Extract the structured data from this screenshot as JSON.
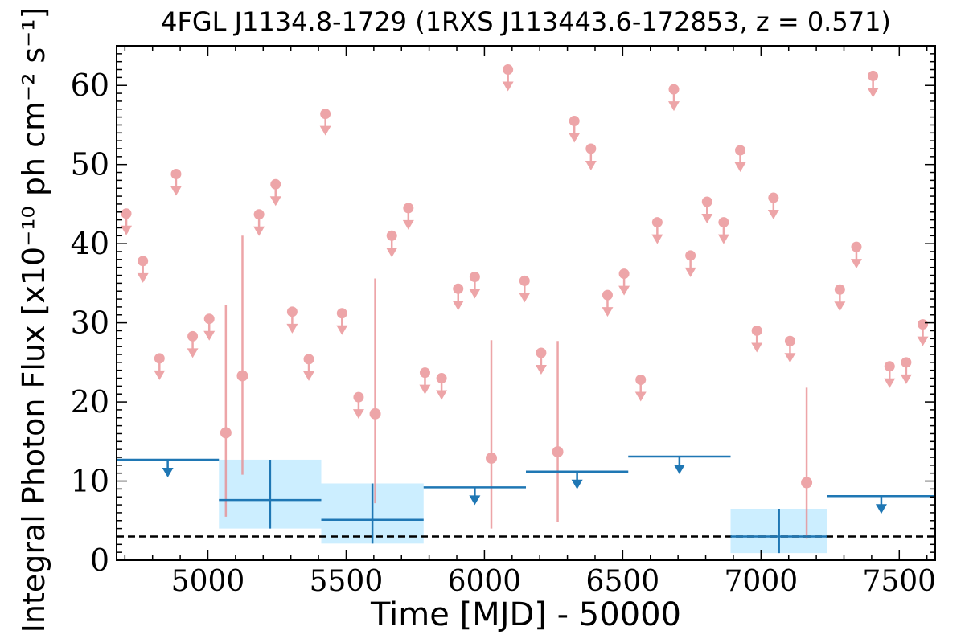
{
  "chart_data": {
    "type": "scatter",
    "title": "4FGL J1134.8-1729 (1RXS J113443.6-172853, z = 0.571)",
    "xlabel": "Time [MJD] - 50000",
    "ylabel": "Integral Photon Flux [x10⁻¹⁰ ph cm⁻² s⁻¹]",
    "xlim": [
      4670,
      7630
    ],
    "ylim": [
      0,
      65
    ],
    "xticks": [
      5000,
      5500,
      6000,
      6500,
      7000,
      7500
    ],
    "yticks": [
      0,
      10,
      20,
      30,
      40,
      50,
      60
    ],
    "grid": false,
    "reference_line": {
      "y": 3.0,
      "style": "dashed",
      "color": "#000000"
    },
    "colors": {
      "short_bins": "#e8888c",
      "long_bins": "#1f77b4",
      "long_bins_band": "#cceeff"
    },
    "short_bin_upper_limits": [
      {
        "x": 4705,
        "y": 43.8
      },
      {
        "x": 4765,
        "y": 37.8
      },
      {
        "x": 4825,
        "y": 25.5
      },
      {
        "x": 4885,
        "y": 48.8
      },
      {
        "x": 4945,
        "y": 28.3
      },
      {
        "x": 5005,
        "y": 30.5
      },
      {
        "x": 5185,
        "y": 43.7
      },
      {
        "x": 5245,
        "y": 47.5
      },
      {
        "x": 5305,
        "y": 31.4
      },
      {
        "x": 5365,
        "y": 25.4
      },
      {
        "x": 5425,
        "y": 56.4
      },
      {
        "x": 5485,
        "y": 31.2
      },
      {
        "x": 5545,
        "y": 20.6
      },
      {
        "x": 5665,
        "y": 41.0
      },
      {
        "x": 5725,
        "y": 44.5
      },
      {
        "x": 5785,
        "y": 23.7
      },
      {
        "x": 5845,
        "y": 23.0
      },
      {
        "x": 5905,
        "y": 34.3
      },
      {
        "x": 5965,
        "y": 35.8
      },
      {
        "x": 6085,
        "y": 62.0
      },
      {
        "x": 6145,
        "y": 35.3
      },
      {
        "x": 6205,
        "y": 26.2
      },
      {
        "x": 6325,
        "y": 55.5
      },
      {
        "x": 6385,
        "y": 52.0
      },
      {
        "x": 6445,
        "y": 33.5
      },
      {
        "x": 6505,
        "y": 36.2
      },
      {
        "x": 6565,
        "y": 22.8
      },
      {
        "x": 6625,
        "y": 42.7
      },
      {
        "x": 6685,
        "y": 59.5
      },
      {
        "x": 6745,
        "y": 38.5
      },
      {
        "x": 6805,
        "y": 45.3
      },
      {
        "x": 6865,
        "y": 42.7
      },
      {
        "x": 6925,
        "y": 51.8
      },
      {
        "x": 6985,
        "y": 29.0
      },
      {
        "x": 7045,
        "y": 45.8
      },
      {
        "x": 7105,
        "y": 27.7
      },
      {
        "x": 7285,
        "y": 34.2
      },
      {
        "x": 7345,
        "y": 39.6
      },
      {
        "x": 7405,
        "y": 61.2
      },
      {
        "x": 7465,
        "y": 24.5
      },
      {
        "x": 7525,
        "y": 25.0
      },
      {
        "x": 7585,
        "y": 29.8
      }
    ],
    "short_bin_detections": [
      {
        "x": 5065,
        "y": 16.1,
        "ylow": 5.5,
        "yhigh": 32.3
      },
      {
        "x": 5125,
        "y": 23.3,
        "ylow": 10.8,
        "yhigh": 41.0
      },
      {
        "x": 5605,
        "y": 18.5,
        "ylow": 7.2,
        "yhigh": 35.6
      },
      {
        "x": 6025,
        "y": 12.9,
        "ylow": 4.0,
        "yhigh": 27.8
      },
      {
        "x": 6265,
        "y": 13.7,
        "ylow": 4.8,
        "yhigh": 27.7
      },
      {
        "x": 7165,
        "y": 9.8,
        "ylow": 2.8,
        "yhigh": 21.8
      }
    ],
    "long_bin_upper_limits": [
      {
        "x0": 4670,
        "x1": 5040,
        "y": 12.7
      },
      {
        "x0": 5780,
        "x1": 6150,
        "y": 9.2
      },
      {
        "x0": 6150,
        "x1": 6520,
        "y": 11.2
      },
      {
        "x0": 6520,
        "x1": 6890,
        "y": 13.1
      },
      {
        "x0": 7240,
        "x1": 7630,
        "y": 8.1
      }
    ],
    "long_bin_detections": [
      {
        "x0": 5040,
        "x1": 5410,
        "y": 7.6,
        "ylow": 4.0,
        "yhigh": 12.7
      },
      {
        "x0": 5410,
        "x1": 5780,
        "y": 5.1,
        "ylow": 2.1,
        "yhigh": 9.7
      },
      {
        "x0": 6890,
        "x1": 7240,
        "y": 3.0,
        "ylow": 0.9,
        "yhigh": 6.5
      }
    ]
  }
}
